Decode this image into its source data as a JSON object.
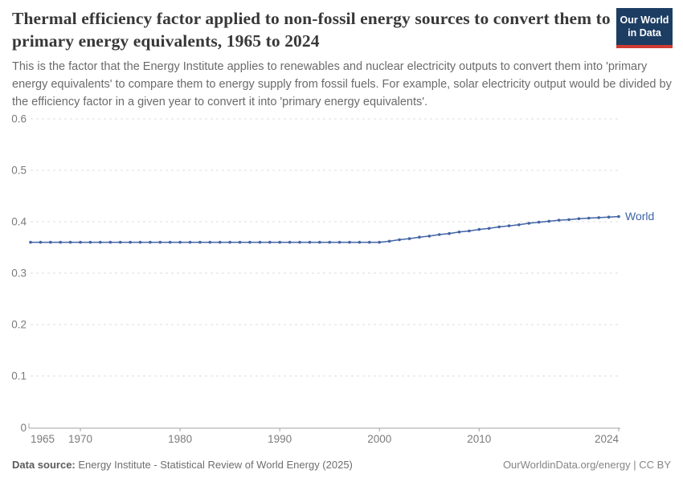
{
  "header": {
    "title": "Thermal efficiency factor applied to non-fossil energy sources to convert them to primary energy equivalents, 1965 to 2024",
    "subtitle": "This is the factor that the Energy Institute applies to renewables and nuclear electricity outputs to convert them into 'primary energy equivalents' to compare them to energy supply from fossil fuels. For example, solar electricity output would be divided by the efficiency factor in a given year to convert it into 'primary energy equivalents'.",
    "logo": {
      "line1": "Our World",
      "line2": "in Data",
      "bg_color": "#1d3d63",
      "accent_color": "#d13b33"
    }
  },
  "chart_data": {
    "type": "line",
    "title": "Thermal efficiency factor applied to non-fossil energy sources to convert them to primary energy equivalents",
    "xlabel": "",
    "ylabel": "",
    "xlim": [
      1965,
      2024
    ],
    "ylim": [
      0,
      0.6
    ],
    "grid": "horizontal-dashed",
    "legend_position": "end-of-line-label",
    "xticks": [
      1965,
      1970,
      1980,
      1990,
      2000,
      2010,
      2024
    ],
    "yticks": [
      0,
      0.1,
      0.2,
      0.3,
      0.4,
      0.5,
      0.6
    ],
    "ytick_labels": [
      "0",
      "0.1",
      "0.2",
      "0.3",
      "0.4",
      "0.5",
      "0.6"
    ],
    "x": [
      1965,
      1966,
      1967,
      1968,
      1969,
      1970,
      1971,
      1972,
      1973,
      1974,
      1975,
      1976,
      1977,
      1978,
      1979,
      1980,
      1981,
      1982,
      1983,
      1984,
      1985,
      1986,
      1987,
      1988,
      1989,
      1990,
      1991,
      1992,
      1993,
      1994,
      1995,
      1996,
      1997,
      1998,
      1999,
      2000,
      2001,
      2002,
      2003,
      2004,
      2005,
      2006,
      2007,
      2008,
      2009,
      2010,
      2011,
      2012,
      2013,
      2014,
      2015,
      2016,
      2017,
      2018,
      2019,
      2020,
      2021,
      2022,
      2023,
      2024
    ],
    "series": [
      {
        "name": "World",
        "color": "#4264a5",
        "values": [
          0.36,
          0.36,
          0.36,
          0.36,
          0.36,
          0.36,
          0.36,
          0.36,
          0.36,
          0.36,
          0.36,
          0.36,
          0.36,
          0.36,
          0.36,
          0.36,
          0.36,
          0.36,
          0.36,
          0.36,
          0.36,
          0.36,
          0.36,
          0.36,
          0.36,
          0.36,
          0.36,
          0.36,
          0.36,
          0.36,
          0.36,
          0.36,
          0.36,
          0.36,
          0.36,
          0.36,
          0.362,
          0.365,
          0.367,
          0.37,
          0.372,
          0.375,
          0.377,
          0.38,
          0.382,
          0.385,
          0.387,
          0.39,
          0.392,
          0.394,
          0.397,
          0.399,
          0.401,
          0.403,
          0.404,
          0.406,
          0.407,
          0.408,
          0.409,
          0.41
        ]
      }
    ],
    "colors": {
      "gridline": "#dcdcdc",
      "axis": "#a3a3a3",
      "tick_label": "#7b7b7b",
      "entity_label": "#3d63a5"
    }
  },
  "footer": {
    "datasource_label": "Data source:",
    "datasource_text": " Energy Institute - Statistical Review of World Energy (2025)",
    "attribution": "OurWorldinData.org/energy | CC BY"
  }
}
